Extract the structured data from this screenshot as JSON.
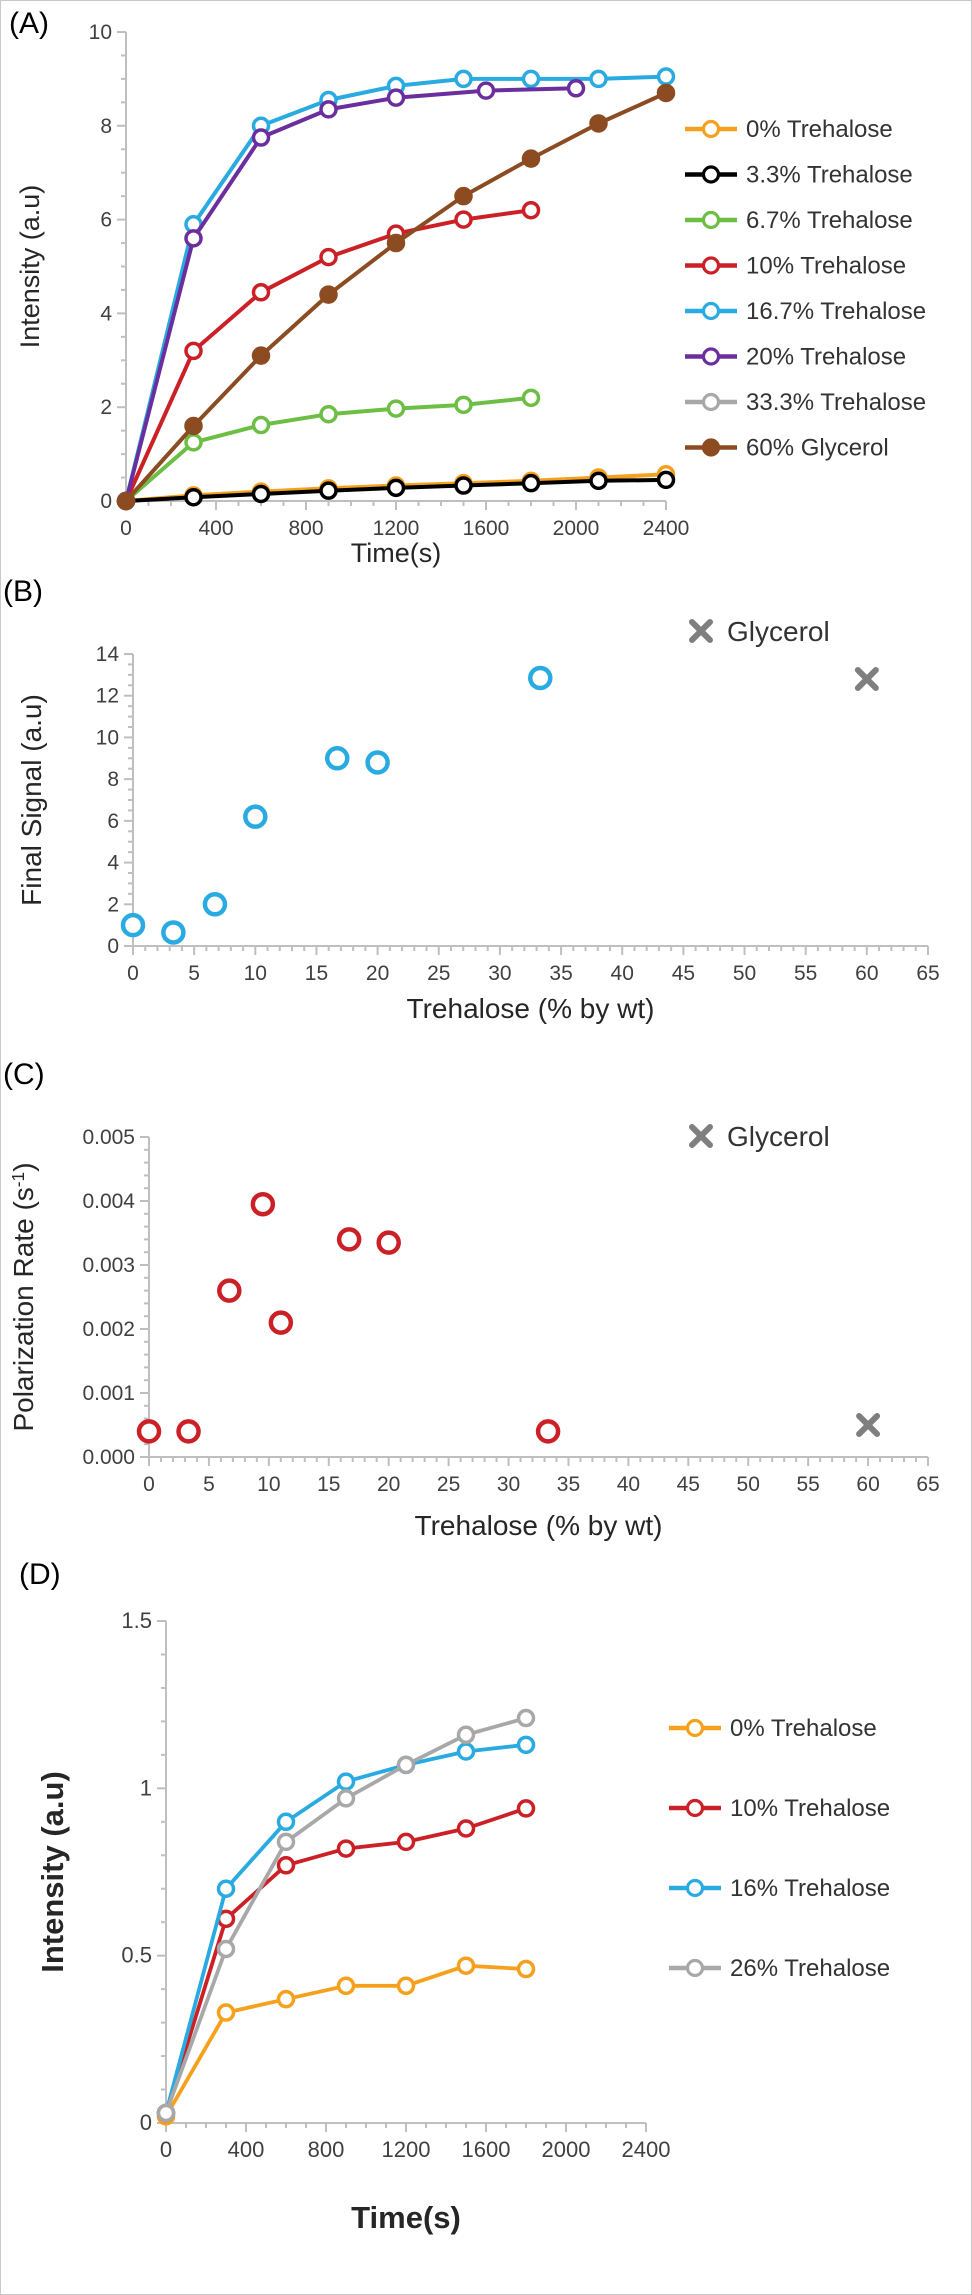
{
  "figure": {
    "background": "#FFFFFF"
  },
  "panels": [
    {
      "label": "(A)"
    },
    {
      "label": "(B)"
    },
    {
      "label": "(C)"
    },
    {
      "label": "(D)"
    }
  ],
  "chart_data": [
    {
      "id": "A",
      "type": "line",
      "title": "",
      "xlabel": "Time(s)",
      "ylabel": "Intensity (a.u)",
      "xlim": [
        0,
        2400
      ],
      "xticks": [
        0,
        400,
        800,
        1200,
        1600,
        2000,
        2400
      ],
      "ylim": [
        0,
        10
      ],
      "yticks": [
        0,
        2,
        4,
        6,
        8,
        10
      ],
      "ytick_labels": [
        "0",
        "2",
        "4",
        "6",
        "8",
        "10"
      ],
      "grid": false,
      "legend_position": "right",
      "series": [
        {
          "name": "0% Trehalose",
          "color": "#F5A11E",
          "marker": "open-circle",
          "x": [
            0,
            300,
            600,
            900,
            1200,
            1500,
            1800,
            2100,
            2400
          ],
          "y": [
            0,
            0.12,
            0.2,
            0.27,
            0.33,
            0.38,
            0.43,
            0.5,
            0.57
          ]
        },
        {
          "name": "3.3% Trehalose",
          "color": "#000000",
          "marker": "open-circle",
          "x": [
            0,
            300,
            600,
            900,
            1200,
            1500,
            1800,
            2100,
            2400
          ],
          "y": [
            0,
            0.08,
            0.15,
            0.22,
            0.28,
            0.33,
            0.38,
            0.43,
            0.45
          ]
        },
        {
          "name": "6.7% Trehalose",
          "color": "#6CBE45",
          "marker": "open-circle",
          "x": [
            0,
            300,
            600,
            900,
            1200,
            1500,
            1800
          ],
          "y": [
            0,
            1.25,
            1.62,
            1.85,
            1.97,
            2.05,
            2.2
          ]
        },
        {
          "name": "10% Trehalose",
          "color": "#CB2026",
          "marker": "open-circle",
          "x": [
            0,
            300,
            600,
            900,
            1200,
            1500,
            1800
          ],
          "y": [
            0,
            3.2,
            4.45,
            5.2,
            5.7,
            6.0,
            6.2
          ]
        },
        {
          "name": "16.7% Trehalose",
          "color": "#29ABE2",
          "marker": "open-circle",
          "x": [
            0,
            300,
            600,
            900,
            1200,
            1500,
            1800,
            2100,
            2400
          ],
          "y": [
            0,
            5.9,
            8.0,
            8.55,
            8.85,
            9.0,
            9.0,
            9.0,
            9.05
          ]
        },
        {
          "name": "20% Trehalose",
          "color": "#6B2E9E",
          "marker": "open-circle",
          "x": [
            0,
            300,
            600,
            900,
            1200,
            1600,
            2000
          ],
          "y": [
            0,
            5.6,
            7.75,
            8.35,
            8.6,
            8.75,
            8.8
          ]
        },
        {
          "name": "33.3% Trehalose",
          "color": "#A8A8A8",
          "marker": "open-circle",
          "x": [],
          "y": []
        },
        {
          "name": "60% Glycerol",
          "color": "#8C4B21",
          "marker": "filled-circle",
          "x": [
            0,
            300,
            600,
            900,
            1200,
            1500,
            1800,
            2100,
            2400
          ],
          "y": [
            0,
            1.6,
            3.1,
            4.4,
            5.5,
            6.5,
            7.3,
            8.05,
            8.7
          ]
        }
      ]
    },
    {
      "id": "B",
      "type": "scatter",
      "title": "",
      "xlabel": "Trehalose (% by wt)",
      "ylabel": "Final Signal (a.u)",
      "xlim": [
        0,
        65
      ],
      "xticks": [
        0,
        5,
        10,
        15,
        20,
        25,
        30,
        35,
        40,
        45,
        50,
        55,
        60,
        65
      ],
      "ylim": [
        0,
        14
      ],
      "yticks": [
        0,
        2,
        4,
        6,
        8,
        10,
        12,
        14
      ],
      "ytick_labels": [
        "0",
        "2",
        "4",
        "6",
        "8",
        "10",
        "12",
        "14"
      ],
      "grid": false,
      "inline_legend": {
        "label": "Glycerol",
        "marker": "x",
        "color": "#7F7F7F"
      },
      "series": [
        {
          "name": "Trehalose",
          "color": "#29ABE2",
          "marker": "open-circle",
          "x": [
            0,
            3.3,
            6.7,
            10,
            16.7,
            20,
            33.3
          ],
          "y": [
            1.0,
            0.65,
            2.0,
            6.2,
            9.0,
            8.8,
            12.85
          ]
        },
        {
          "name": "Glycerol",
          "color": "#7F7F7F",
          "marker": "x",
          "x": [
            60
          ],
          "y": [
            12.8
          ]
        }
      ]
    },
    {
      "id": "C",
      "type": "scatter",
      "title": "",
      "xlabel": "Trehalose (% by wt)",
      "ylabel": "Polarization Rate (s^-1^)",
      "xlim": [
        0,
        65
      ],
      "xticks": [
        0,
        5,
        10,
        15,
        20,
        25,
        30,
        35,
        40,
        45,
        50,
        55,
        60,
        65
      ],
      "ylim": [
        0,
        0.005
      ],
      "yticks": [
        0,
        0.001,
        0.002,
        0.003,
        0.004,
        0.005
      ],
      "ytick_labels": [
        "0.000",
        "0.001",
        "0.002",
        "0.003",
        "0.004",
        "0.005"
      ],
      "grid": false,
      "inline_legend": {
        "label": "Glycerol",
        "marker": "x",
        "color": "#7F7F7F"
      },
      "series": [
        {
          "name": "Trehalose",
          "color": "#CB2026",
          "marker": "open-circle",
          "x": [
            0,
            3.3,
            6.7,
            9.5,
            11,
            16.7,
            20,
            33.3
          ],
          "y": [
            0.0004,
            0.0004,
            0.0026,
            0.00395,
            0.0021,
            0.0034,
            0.00335,
            0.0004
          ]
        },
        {
          "name": "Glycerol",
          "color": "#7F7F7F",
          "marker": "x",
          "x": [
            60
          ],
          "y": [
            0.0005
          ]
        }
      ]
    },
    {
      "id": "D",
      "type": "line",
      "title": "",
      "xlabel": "Time(s)",
      "ylabel": "Intensity (a.u)",
      "xlim": [
        0,
        2400
      ],
      "xticks": [
        0,
        400,
        800,
        1200,
        1600,
        2000,
        2400
      ],
      "ylim": [
        0,
        1.5
      ],
      "yticks": [
        0,
        0.5,
        1,
        1.5
      ],
      "ytick_labels": [
        "0",
        "0.5",
        "1",
        "1.5"
      ],
      "grid": false,
      "legend_position": "right",
      "series": [
        {
          "name": "0% Trehalose",
          "color": "#F5A11E",
          "marker": "open-circle",
          "x": [
            0,
            300,
            600,
            900,
            1200,
            1500,
            1800
          ],
          "y": [
            0.02,
            0.33,
            0.37,
            0.41,
            0.41,
            0.47,
            0.46
          ]
        },
        {
          "name": "10% Trehalose",
          "color": "#CB2026",
          "marker": "open-circle",
          "x": [
            0,
            300,
            600,
            900,
            1200,
            1500,
            1800
          ],
          "y": [
            0.03,
            0.61,
            0.77,
            0.82,
            0.84,
            0.88,
            0.94
          ]
        },
        {
          "name": "16% Trehalose",
          "color": "#29ABE2",
          "marker": "open-circle",
          "x": [
            0,
            300,
            600,
            900,
            1200,
            1500,
            1800
          ],
          "y": [
            0.03,
            0.7,
            0.9,
            1.02,
            1.07,
            1.11,
            1.13
          ]
        },
        {
          "name": "26% Trehalose",
          "color": "#A8A8A8",
          "marker": "open-circle",
          "x": [
            0,
            300,
            600,
            900,
            1200,
            1500,
            1800
          ],
          "y": [
            0.03,
            0.52,
            0.84,
            0.97,
            1.07,
            1.16,
            1.21
          ]
        }
      ]
    }
  ]
}
